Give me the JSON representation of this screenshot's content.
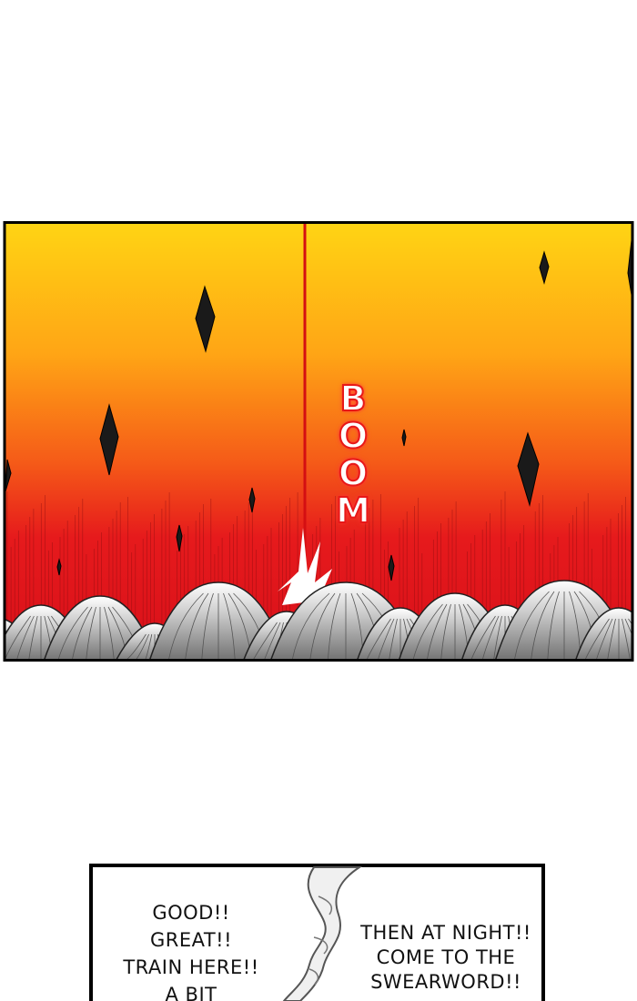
{
  "panels": [
    {
      "sound_effect": "BOOM"
    },
    {
      "bubbles": [
        {
          "lines": [
            "GOOD!!",
            "GREAT!!",
            "TRAIN HERE!!",
            "A BIT"
          ]
        },
        {
          "lines": [
            "THEN AT NIGHT!!",
            "COME TO THE",
            "SWEARWORD!!"
          ]
        }
      ]
    }
  ]
}
